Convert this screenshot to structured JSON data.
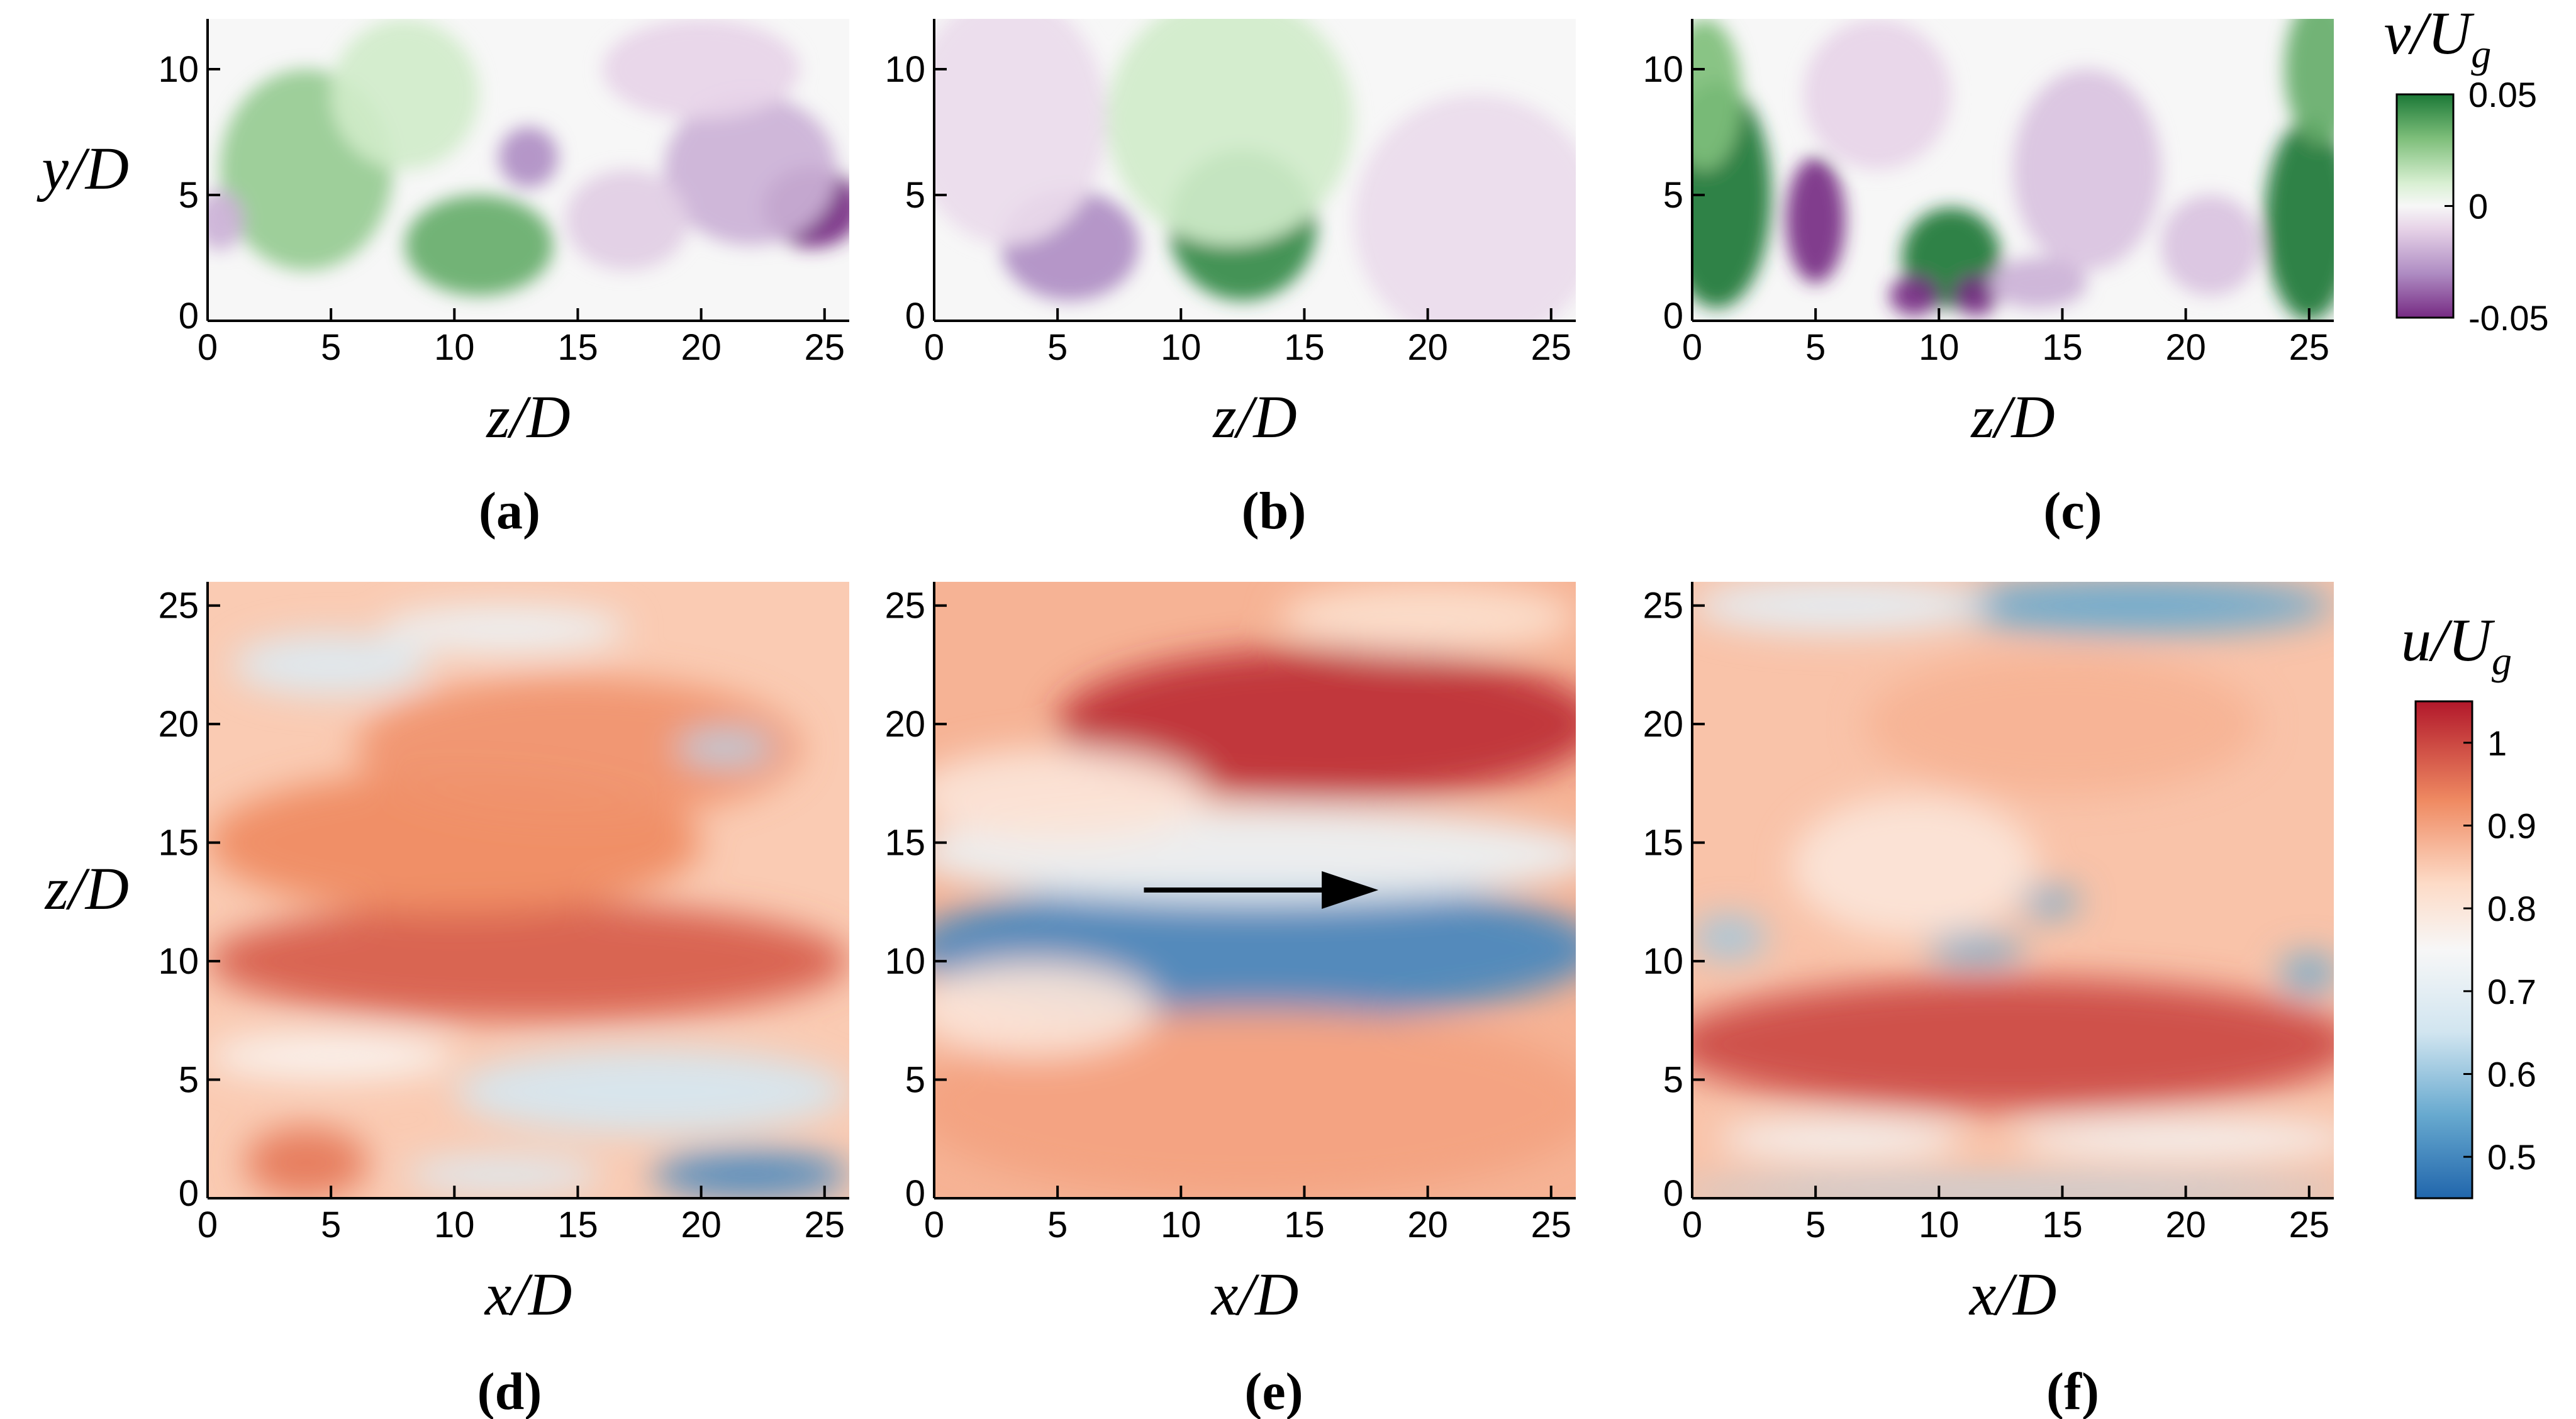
{
  "figure_type": "multi-panel contour plots",
  "colors": {
    "green_dark": "#1b7837",
    "green_mid": "#7fbf7b",
    "green_light": "#d9f0d3",
    "purple_light": "#e7d4e8",
    "purple_mid": "#af8dc3",
    "purple_dark": "#762a83",
    "blue_dark": "#2166ac",
    "blue_mid": "#67a9cf",
    "blue_light": "#d1e5f0",
    "red_light": "#fddbc7",
    "red_mid": "#ef8a62",
    "red_dark": "#b2182b",
    "neutral": "#f7f7f7",
    "arrow": "#000000",
    "axis": "#000000"
  },
  "chart_data": [
    {
      "type": "heatmap",
      "panel": "(a)",
      "field": "v/U_g",
      "plane": "z-y",
      "xlabel": "z/D",
      "ylabel": "y/D",
      "xlim": [
        0,
        26
      ],
      "ylim": [
        0,
        12
      ],
      "xticks": [
        "0",
        "5",
        "10",
        "15",
        "20",
        "25"
      ],
      "yticks": [
        "0",
        "5",
        "10"
      ],
      "blobs": [
        {
          "x": 4,
          "y": 6,
          "rx": 3.5,
          "ry": 4,
          "value": 0.025
        },
        {
          "x": 11,
          "y": 3,
          "rx": 3,
          "ry": 2,
          "value": 0.035
        },
        {
          "x": 8,
          "y": 9,
          "rx": 3,
          "ry": 3,
          "value": 0.012
        },
        {
          "x": 13,
          "y": 6.5,
          "rx": 1.2,
          "ry": 1.2,
          "value": -0.03
        },
        {
          "x": 24.5,
          "y": 4.5,
          "rx": 2,
          "ry": 1.6,
          "value": -0.05
        },
        {
          "x": 22,
          "y": 6,
          "rx": 3.5,
          "ry": 3,
          "value": -0.02
        },
        {
          "x": 17,
          "y": 4,
          "rx": 2.5,
          "ry": 2,
          "value": -0.012
        },
        {
          "x": 20,
          "y": 10,
          "rx": 4,
          "ry": 2,
          "value": -0.01
        },
        {
          "x": 0.5,
          "y": 4,
          "rx": 1,
          "ry": 1.2,
          "value": -0.02
        }
      ]
    },
    {
      "type": "heatmap",
      "panel": "(b)",
      "field": "v/U_g",
      "plane": "z-y",
      "xlabel": "z/D",
      "ylabel": "",
      "xlim": [
        0,
        26
      ],
      "ylim": [
        0,
        12
      ],
      "xticks": [
        "0",
        "5",
        "10",
        "15",
        "20",
        "25"
      ],
      "yticks": [
        "0",
        "5",
        "10"
      ],
      "blobs": [
        {
          "x": 5.5,
          "y": 3,
          "rx": 2.8,
          "ry": 2.2,
          "value": -0.03
        },
        {
          "x": 12.5,
          "y": 3.8,
          "rx": 3,
          "ry": 3,
          "value": 0.045
        },
        {
          "x": 12,
          "y": 8,
          "rx": 5,
          "ry": 5,
          "value": 0.012
        },
        {
          "x": 3,
          "y": 8,
          "rx": 4,
          "ry": 5,
          "value": -0.008
        },
        {
          "x": 22,
          "y": 4,
          "rx": 5,
          "ry": 5,
          "value": -0.008
        }
      ]
    },
    {
      "type": "heatmap",
      "panel": "(c)",
      "field": "v/U_g",
      "plane": "z-y",
      "xlabel": "z/D",
      "ylabel": "",
      "xlim": [
        0,
        26
      ],
      "ylim": [
        0,
        12
      ],
      "xticks": [
        "0",
        "5",
        "10",
        "15",
        "20",
        "25"
      ],
      "yticks": [
        "0",
        "5",
        "10"
      ],
      "blobs": [
        {
          "x": 1,
          "y": 5,
          "rx": 2.2,
          "ry": 4.5,
          "value": 0.06
        },
        {
          "x": 0.5,
          "y": 9,
          "rx": 1.5,
          "ry": 3,
          "value": 0.03
        },
        {
          "x": 5,
          "y": 4,
          "rx": 1.2,
          "ry": 2.5,
          "value": -0.06
        },
        {
          "x": 10.5,
          "y": 2.5,
          "rx": 2,
          "ry": 2,
          "value": 0.06
        },
        {
          "x": 9,
          "y": 1,
          "rx": 1,
          "ry": 0.8,
          "value": -0.06
        },
        {
          "x": 11.5,
          "y": 1,
          "rx": 0.9,
          "ry": 0.8,
          "value": -0.06
        },
        {
          "x": 16,
          "y": 6,
          "rx": 3,
          "ry": 4,
          "value": -0.015
        },
        {
          "x": 25,
          "y": 4,
          "rx": 1.8,
          "ry": 4,
          "value": 0.06
        },
        {
          "x": 25.5,
          "y": 10,
          "rx": 1.5,
          "ry": 3,
          "value": 0.035
        },
        {
          "x": 21,
          "y": 3,
          "rx": 2,
          "ry": 2,
          "value": -0.015
        },
        {
          "x": 7.5,
          "y": 9,
          "rx": 3,
          "ry": 3,
          "value": -0.01
        },
        {
          "x": 14,
          "y": 1.5,
          "rx": 2,
          "ry": 1,
          "value": -0.02
        }
      ]
    },
    {
      "type": "heatmap",
      "panel": "(d)",
      "field": "u/U_g",
      "plane": "x-z",
      "xlabel": "x/D",
      "ylabel": "z/D",
      "xlim": [
        0,
        26
      ],
      "ylim": [
        0,
        26
      ],
      "xticks": [
        "0",
        "5",
        "10",
        "15",
        "20",
        "25"
      ],
      "yticks": [
        "0",
        "5",
        "10",
        "15",
        "20",
        "25"
      ],
      "base_value": 0.85,
      "blobs": [
        {
          "x": 13,
          "y": 10,
          "rx": 13,
          "ry": 2.5,
          "value": 0.98
        },
        {
          "x": 10,
          "y": 15,
          "rx": 10,
          "ry": 3,
          "value": 0.93
        },
        {
          "x": 15,
          "y": 19,
          "rx": 9,
          "ry": 3,
          "value": 0.92
        },
        {
          "x": 5,
          "y": 22.5,
          "rx": 4,
          "ry": 1.3,
          "value": 0.68
        },
        {
          "x": 12,
          "y": 24,
          "rx": 5,
          "ry": 1,
          "value": 0.72
        },
        {
          "x": 21,
          "y": 19,
          "rx": 2,
          "ry": 0.7,
          "value": 0.62
        },
        {
          "x": 18,
          "y": 4.5,
          "rx": 8,
          "ry": 1.8,
          "value": 0.66
        },
        {
          "x": 5,
          "y": 6,
          "rx": 5,
          "ry": 1,
          "value": 0.76
        },
        {
          "x": 22,
          "y": 1,
          "rx": 4,
          "ry": 1,
          "value": 0.5
        },
        {
          "x": 12,
          "y": 1,
          "rx": 4,
          "ry": 0.8,
          "value": 0.68
        },
        {
          "x": 4,
          "y": 1.5,
          "rx": 2.5,
          "ry": 1.5,
          "value": 0.95
        }
      ]
    },
    {
      "type": "heatmap",
      "panel": "(e)",
      "field": "u/U_g",
      "plane": "x-z",
      "xlabel": "x/D",
      "ylabel": "",
      "xlim": [
        0,
        26
      ],
      "ylim": [
        0,
        26
      ],
      "xticks": [
        "0",
        "5",
        "10",
        "15",
        "20",
        "25"
      ],
      "yticks": [
        "0",
        "5",
        "10",
        "15",
        "20",
        "25"
      ],
      "base_value": 0.88,
      "blobs": [
        {
          "x": 13,
          "y": 10.5,
          "rx": 14,
          "ry": 3,
          "value": 0.5
        },
        {
          "x": 13,
          "y": 14.5,
          "rx": 14,
          "ry": 2,
          "value": 0.72
        },
        {
          "x": 16,
          "y": 20,
          "rx": 11,
          "ry": 3.2,
          "value": 1.03
        },
        {
          "x": 5,
          "y": 17,
          "rx": 6,
          "ry": 2,
          "value": 0.8
        },
        {
          "x": 13,
          "y": 4,
          "rx": 14,
          "ry": 4,
          "value": 0.9
        },
        {
          "x": 20,
          "y": 24.5,
          "rx": 6,
          "ry": 1.5,
          "value": 0.82
        },
        {
          "x": 4,
          "y": 8,
          "rx": 5,
          "ry": 2,
          "value": 0.8
        }
      ],
      "annotation": {
        "type": "arrow",
        "from": [
          8.5,
          13
        ],
        "to": [
          18,
          13
        ]
      }
    },
    {
      "type": "heatmap",
      "panel": "(f)",
      "field": "u/U_g",
      "plane": "x-z",
      "xlabel": "x/D",
      "ylabel": "",
      "xlim": [
        0,
        26
      ],
      "ylim": [
        0,
        26
      ],
      "xticks": [
        "0",
        "5",
        "10",
        "15",
        "20",
        "25"
      ],
      "yticks": [
        "0",
        "5",
        "10",
        "15",
        "20",
        "25"
      ],
      "base_value": 0.86,
      "blobs": [
        {
          "x": 13,
          "y": 6.5,
          "rx": 14,
          "ry": 2.8,
          "value": 1.0
        },
        {
          "x": 18,
          "y": 25,
          "rx": 8,
          "ry": 1.2,
          "value": 0.55
        },
        {
          "x": 6,
          "y": 25,
          "rx": 6,
          "ry": 1.2,
          "value": 0.7
        },
        {
          "x": 9,
          "y": 14,
          "rx": 5,
          "ry": 3,
          "value": 0.8
        },
        {
          "x": 15,
          "y": 20,
          "rx": 8,
          "ry": 3,
          "value": 0.88
        },
        {
          "x": 11.5,
          "y": 10.5,
          "rx": 2,
          "ry": 0.6,
          "value": 0.55
        },
        {
          "x": 14.5,
          "y": 12.5,
          "rx": 1.2,
          "ry": 0.6,
          "value": 0.55
        },
        {
          "x": 25,
          "y": 9.5,
          "rx": 1.2,
          "ry": 0.8,
          "value": 0.55
        },
        {
          "x": 1.5,
          "y": 11,
          "rx": 1.5,
          "ry": 0.9,
          "value": 0.6
        },
        {
          "x": 20,
          "y": 2.5,
          "rx": 7,
          "ry": 0.8,
          "value": 0.74
        },
        {
          "x": 6,
          "y": 2.5,
          "rx": 5,
          "ry": 0.8,
          "value": 0.74
        },
        {
          "x": 13,
          "y": 0.3,
          "rx": 14,
          "ry": 0.5,
          "value": 0.62
        }
      ]
    }
  ],
  "colorbars": [
    {
      "label": "v/U_g",
      "label_math": {
        "var": "v",
        "den": "U",
        "sub": "g"
      },
      "min": -0.05,
      "max": 0.05,
      "tick_labels": [
        {
          "value": 0.05,
          "text": "0.05"
        },
        {
          "value": 0,
          "text": "0"
        },
        {
          "value": -0.05,
          "text": "-0.05"
        }
      ]
    },
    {
      "label": "u/U_g",
      "label_math": {
        "var": "u",
        "den": "U",
        "sub": "g"
      },
      "min": 0.45,
      "max": 1.05,
      "tick_labels": [
        {
          "value": 1.0,
          "text": "1"
        },
        {
          "value": 0.9,
          "text": "0.9"
        },
        {
          "value": 0.8,
          "text": "0.8"
        },
        {
          "value": 0.7,
          "text": "0.7"
        },
        {
          "value": 0.6,
          "text": "0.6"
        },
        {
          "value": 0.5,
          "text": "0.5"
        }
      ]
    }
  ],
  "captions": [
    "(a)",
    "(b)",
    "(c)",
    "(d)",
    "(e)",
    "(f)"
  ]
}
